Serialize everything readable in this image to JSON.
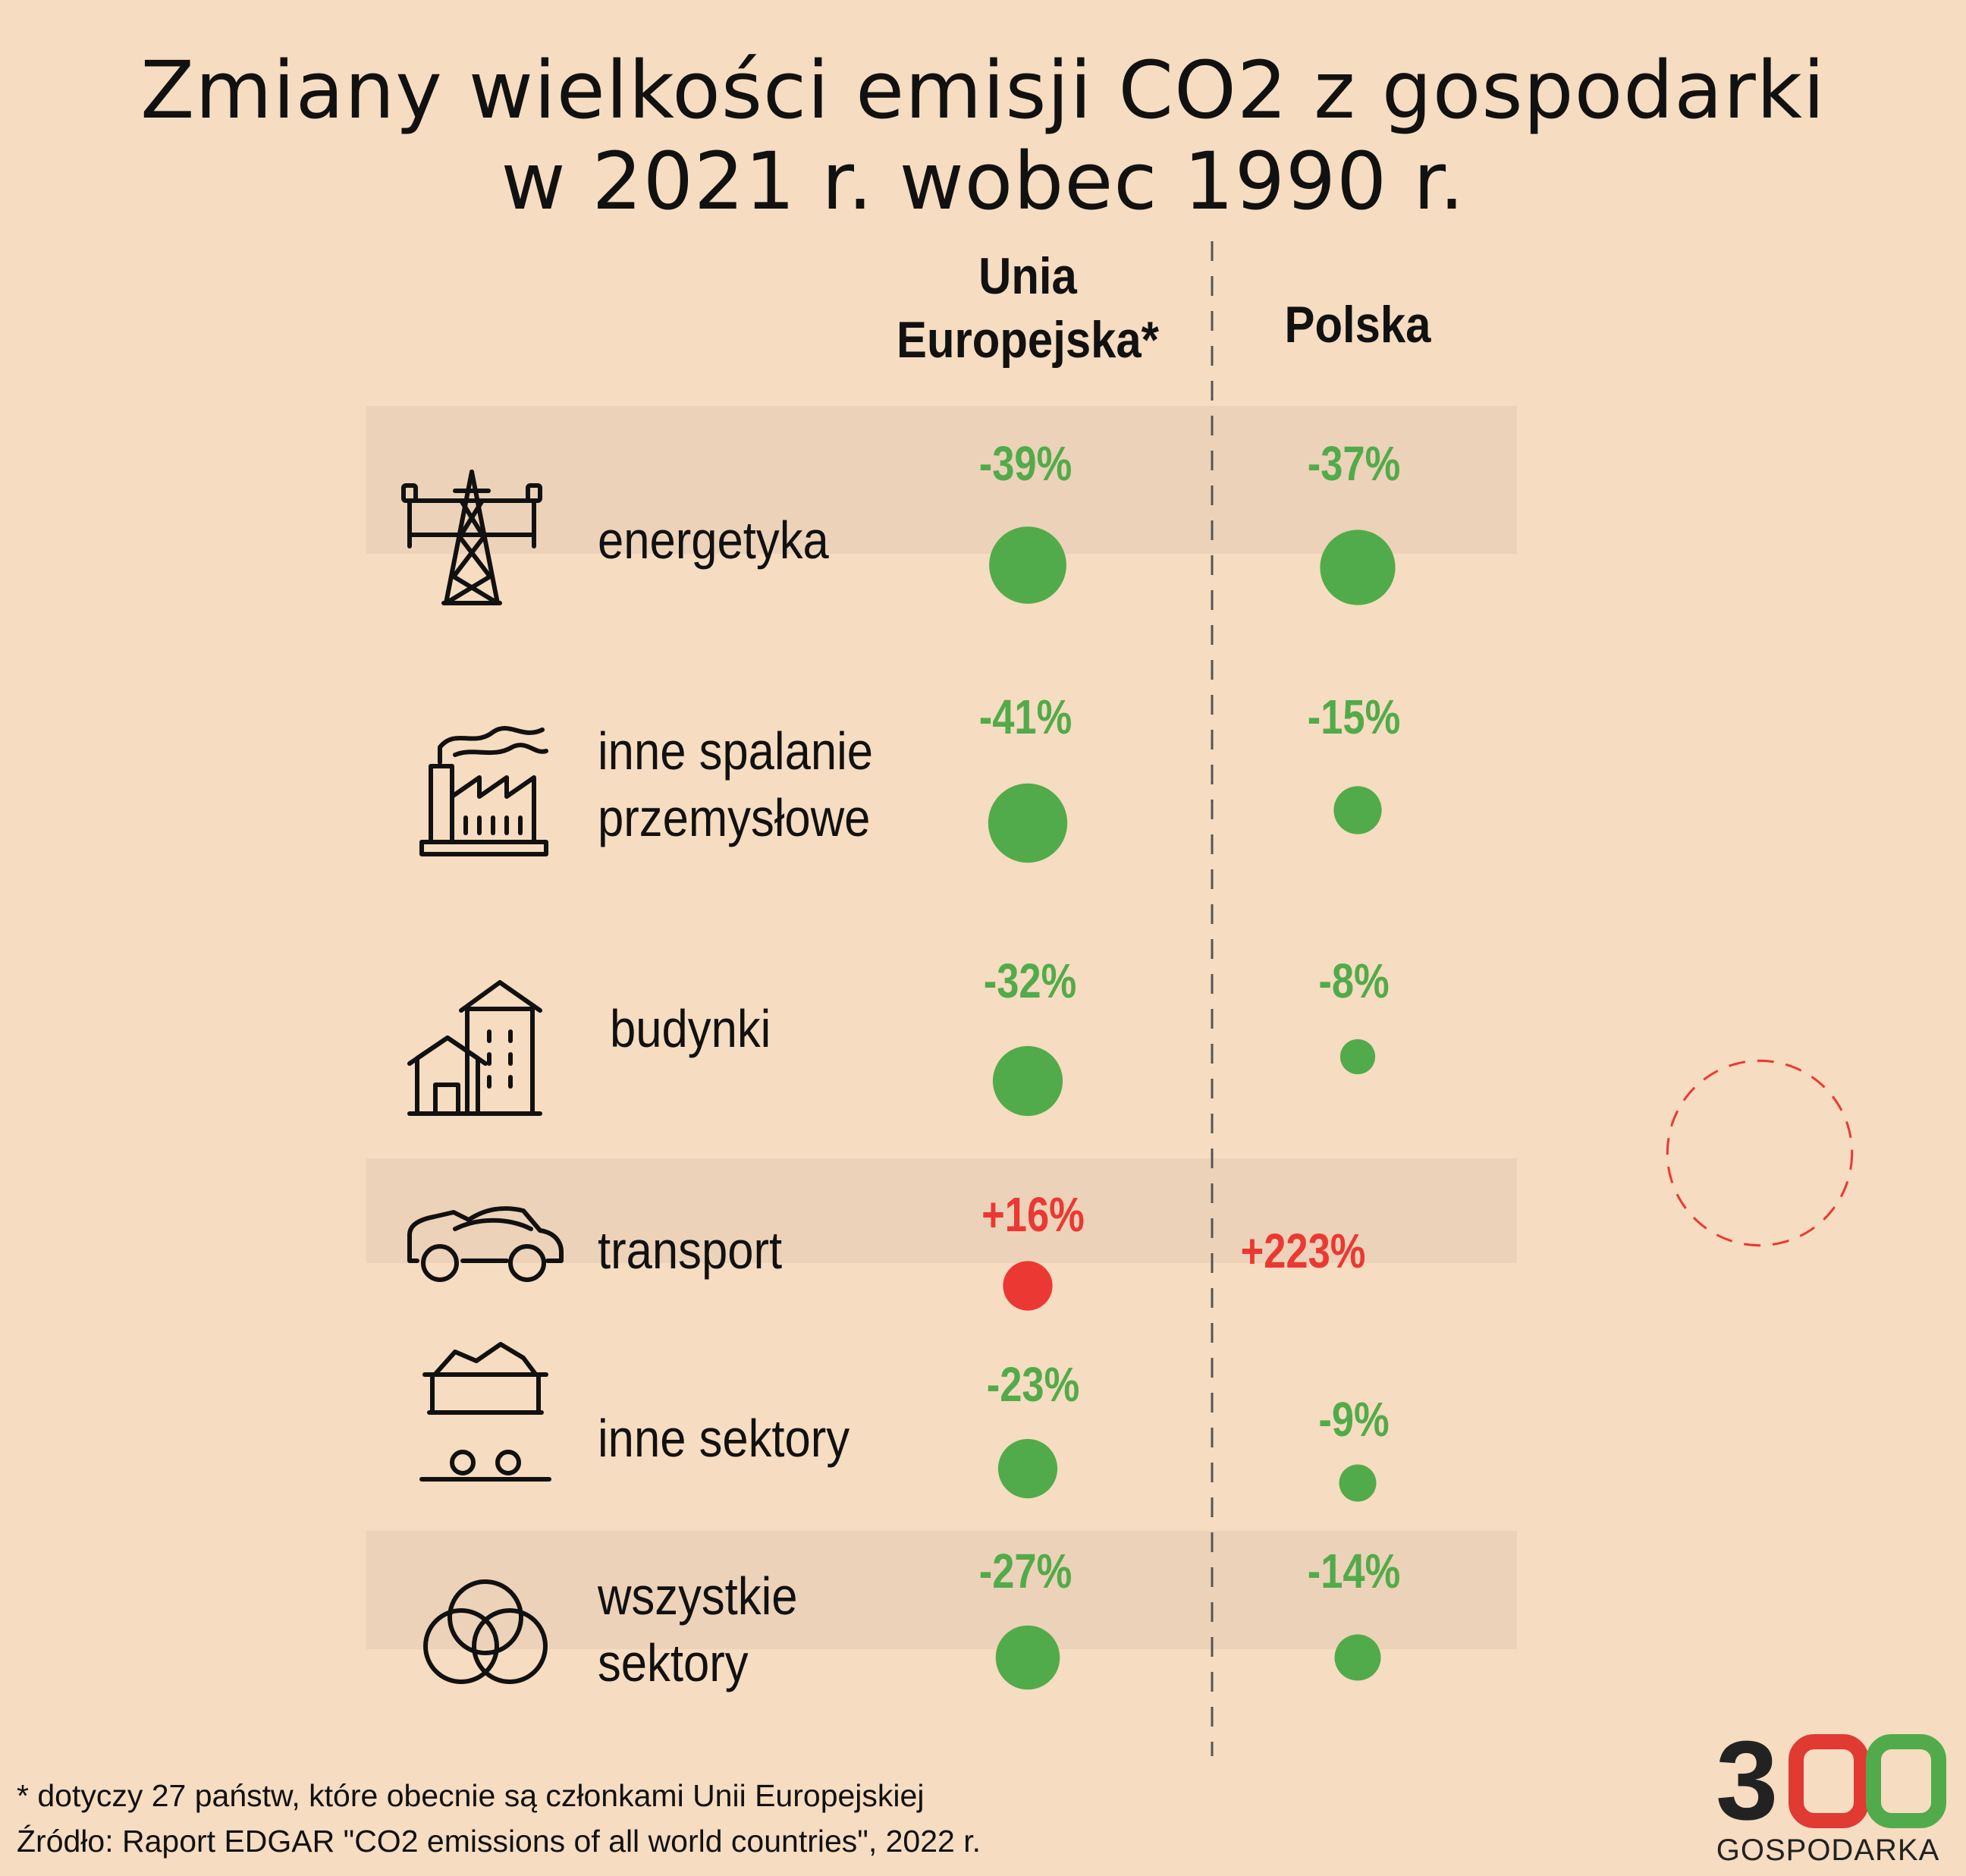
{
  "title": {
    "line1": "Zmiany wielkości emisji CO2 z gospodarki",
    "line2": "w 2021 r. wobec 1990 r."
  },
  "columns": {
    "eu_line1": "Unia",
    "eu_line2": "Europejska*",
    "pl": "Polska"
  },
  "chart_data": {
    "type": "bubble",
    "title": "Zmiany wielkości emisji CO2 z gospodarki w 2021 r. wobec 1990 r.",
    "categories": [
      "energetyka",
      "inne spalanie przemysłowe",
      "budynki",
      "transport",
      "inne sektory",
      "wszystkie sektory"
    ],
    "series": [
      {
        "name": "Unia Europejska*",
        "values": [
          -39,
          -41,
          -32,
          16,
          -23,
          -27
        ],
        "labels": [
          "-39%",
          "-41%",
          "-32%",
          "+16%",
          "-23%",
          "-27%"
        ]
      },
      {
        "name": "Polska",
        "values": [
          -37,
          -15,
          -8,
          223,
          -9,
          -14
        ],
        "labels": [
          "-37%",
          "-15%",
          "-8%",
          "+223%",
          "-9%",
          "-14%"
        ]
      }
    ],
    "colors": {
      "decrease": "#52ab4a",
      "increase": "#ec3833"
    },
    "unit": "%"
  },
  "rows": [
    {
      "label_lines": [
        "energetyka"
      ],
      "icon": "power-pylon-icon"
    },
    {
      "label_lines": [
        "inne spalanie",
        "przemysłowe"
      ],
      "icon": "factory-icon"
    },
    {
      "label_lines": [
        "budynki"
      ],
      "icon": "buildings-icon"
    },
    {
      "label_lines": [
        "transport"
      ],
      "icon": "car-icon"
    },
    {
      "label_lines": [
        "inne sektory"
      ],
      "icon": "mine-cart-icon"
    },
    {
      "label_lines": [
        "wszystkie",
        "sektory"
      ],
      "icon": "venn-circles-icon"
    }
  ],
  "footer": {
    "note": "* dotyczy 27 państw, które obecnie są członkami Unii Europejskiej",
    "source": "Źródło: Raport EDGAR \"CO2 emissions of all world countries\", 2022 r."
  },
  "logo": {
    "digit1": "3",
    "digit2": "0",
    "digit3": "0",
    "word": "GOSPODARKA",
    "colors": [
      "#222222",
      "#e03a33",
      "#52ab4a"
    ]
  },
  "colors": {
    "background": "#f6dcc0",
    "row_band": "#ecd2b8",
    "divider": "#555555",
    "green": "#52ab4a",
    "red": "#ec3833"
  }
}
